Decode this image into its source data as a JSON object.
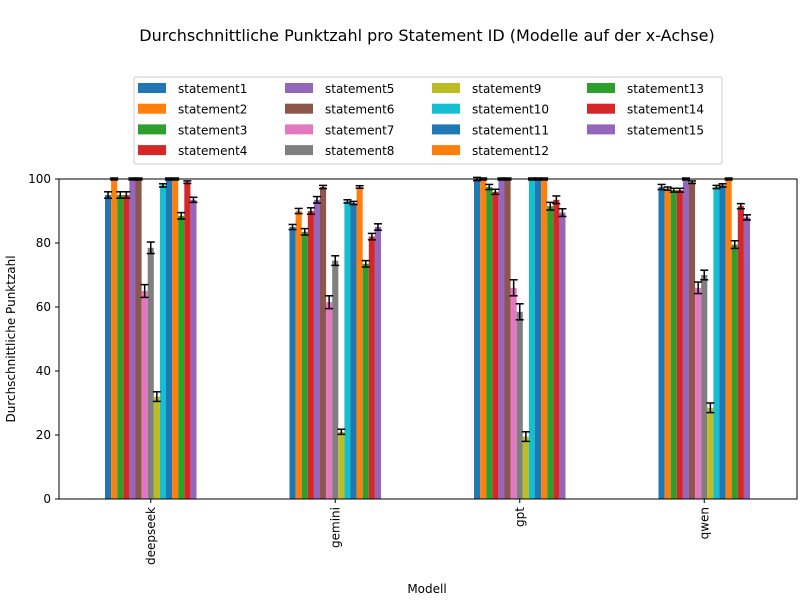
{
  "chart_data": {
    "type": "bar",
    "title": "Durchschnittliche Punktzahl pro Statement ID (Modelle auf der x-Achse)",
    "xlabel": "Modell",
    "ylabel": "Durchschnittliche Punktzahl",
    "ylim": [
      0,
      100
    ],
    "yticks": [
      "0",
      "20",
      "40",
      "60",
      "80",
      "100"
    ],
    "grid": false,
    "legend_position": "top-center",
    "categories": [
      "deepseek",
      "gemini",
      "gpt",
      "qwen"
    ],
    "series": [
      {
        "name": "statement1",
        "color": "#1f77b4",
        "values": [
          95.0,
          85.0,
          100.0,
          97.5
        ],
        "errors": [
          1.0,
          0.8,
          0.5,
          0.8
        ]
      },
      {
        "name": "statement2",
        "color": "#ff7f0e",
        "values": [
          100.0,
          90.0,
          100.0,
          97.0
        ],
        "errors": [
          0.3,
          0.8,
          0.3,
          0.5
        ]
      },
      {
        "name": "statement3",
        "color": "#2ca02c",
        "values": [
          95.0,
          83.5,
          97.5,
          96.5
        ],
        "errors": [
          1.0,
          1.0,
          0.8,
          0.6
        ]
      },
      {
        "name": "statement4",
        "color": "#d62728",
        "values": [
          95.0,
          90.0,
          96.0,
          96.5
        ],
        "errors": [
          1.0,
          1.0,
          0.8,
          0.6
        ]
      },
      {
        "name": "statement5",
        "color": "#9467bd",
        "values": [
          100.0,
          93.5,
          100.0,
          100.0
        ],
        "errors": [
          0.3,
          1.0,
          0.3,
          0.3
        ]
      },
      {
        "name": "statement6",
        "color": "#8c564b",
        "values": [
          100.0,
          97.5,
          100.0,
          99.0
        ],
        "errors": [
          0.3,
          0.5,
          0.3,
          0.4
        ]
      },
      {
        "name": "statement7",
        "color": "#e377c2",
        "values": [
          65.0,
          61.5,
          66.0,
          66.0
        ],
        "errors": [
          2.0,
          2.0,
          2.5,
          1.8
        ]
      },
      {
        "name": "statement8",
        "color": "#7f7f7f",
        "values": [
          78.5,
          74.5,
          58.5,
          70.0
        ],
        "errors": [
          1.8,
          1.5,
          2.5,
          1.5
        ]
      },
      {
        "name": "statement9",
        "color": "#bcbd22",
        "values": [
          32.0,
          21.0,
          19.5,
          28.5
        ],
        "errors": [
          1.5,
          0.8,
          1.5,
          1.5
        ]
      },
      {
        "name": "statement10",
        "color": "#17becf",
        "values": [
          98.0,
          93.0,
          100.0,
          97.5
        ],
        "errors": [
          0.5,
          0.5,
          0.3,
          0.5
        ]
      },
      {
        "name": "statement11",
        "color": "#1f77b4",
        "values": [
          100.0,
          92.5,
          100.0,
          98.0
        ],
        "errors": [
          0.3,
          0.5,
          0.3,
          0.5
        ]
      },
      {
        "name": "statement12",
        "color": "#ff7f0e",
        "values": [
          100.0,
          97.5,
          100.0,
          100.0
        ],
        "errors": [
          0.3,
          0.4,
          0.3,
          0.3
        ]
      },
      {
        "name": "statement13",
        "color": "#2ca02c",
        "values": [
          88.5,
          73.5,
          91.5,
          79.5
        ],
        "errors": [
          1.0,
          1.0,
          1.2,
          1.2
        ]
      },
      {
        "name": "statement14",
        "color": "#d62728",
        "values": [
          99.0,
          82.0,
          93.5,
          91.5
        ],
        "errors": [
          0.4,
          1.0,
          1.2,
          0.8
        ]
      },
      {
        "name": "statement15",
        "color": "#9467bd",
        "values": [
          93.5,
          85.0,
          89.5,
          88.0
        ],
        "errors": [
          0.8,
          1.0,
          1.2,
          0.8
        ]
      }
    ]
  }
}
